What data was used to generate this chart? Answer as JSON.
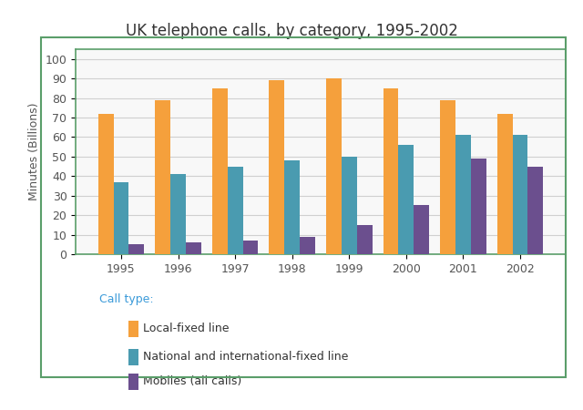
{
  "title": "UK telephone calls, by category, 1995-2002",
  "ylabel": "Minutes (Billions)",
  "years": [
    1995,
    1996,
    1997,
    1998,
    1999,
    2000,
    2001,
    2002
  ],
  "local_fixed": [
    72,
    79,
    85,
    89,
    90,
    85,
    79,
    72
  ],
  "national_fixed": [
    37,
    41,
    45,
    48,
    50,
    56,
    61,
    61
  ],
  "mobiles": [
    5,
    6,
    7,
    9,
    15,
    25,
    49,
    45
  ],
  "color_local": "#F5A03C",
  "color_national": "#4A9BB0",
  "color_mobiles": "#6B4F8E",
  "legend_label_local": "Local-fixed line",
  "legend_label_national": "National and international-fixed line",
  "legend_label_mobiles": "Mobiles (all calls)",
  "legend_title": "Call type:",
  "legend_title_color": "#3A9AD9",
  "ylim": [
    0,
    105
  ],
  "yticks": [
    0,
    10,
    20,
    30,
    40,
    50,
    60,
    70,
    80,
    90,
    100
  ],
  "bar_width": 0.27,
  "grid_color": "#d0d0d0",
  "frame_color": "#5A9E6A",
  "plot_bg": "#f8f8f8",
  "outer_frame_color": "#5A9E6A",
  "title_fontsize": 12,
  "axis_label_fontsize": 9,
  "tick_fontsize": 9,
  "legend_fontsize": 9
}
